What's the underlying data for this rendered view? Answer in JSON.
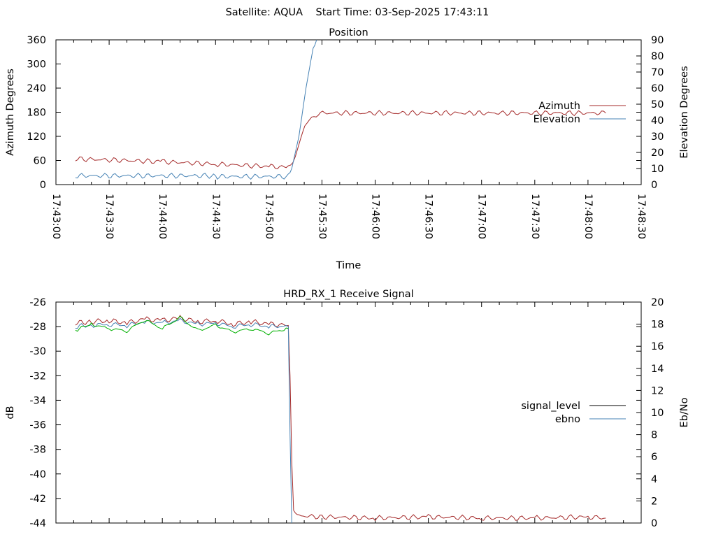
{
  "page_title": "Satellite: AQUA    Start Time: 03-Sep-2025 17:43:11",
  "chart_data": [
    {
      "type": "line",
      "title": "Position",
      "xlabel": "Time",
      "ylabel": "Azimuth Degrees",
      "y2label": "Elevation Degrees",
      "ylim": [
        0,
        360
      ],
      "y2lim": [
        0,
        90
      ],
      "yticks": [
        0,
        60,
        120,
        180,
        240,
        300,
        360
      ],
      "y2ticks": [
        0,
        10,
        20,
        30,
        40,
        50,
        60,
        70,
        80,
        90
      ],
      "xlim": [
        "17:43:00",
        "17:48:30"
      ],
      "xticks": [
        "17:43:00",
        "17:43:30",
        "17:44:00",
        "17:44:30",
        "17:45:00",
        "17:45:30",
        "17:46:00",
        "17:46:30",
        "17:47:00",
        "17:47:30",
        "17:48:00",
        "17:48:30"
      ],
      "legend_position": "right",
      "grid": false,
      "series": [
        {
          "name": "Azimuth",
          "axis": "y",
          "color": "#a52a2a",
          "points": [
            [
              "17:43:11",
              64
            ],
            [
              "17:44:00",
              57
            ],
            [
              "17:44:30",
              51
            ],
            [
              "17:45:00",
              45
            ],
            [
              "17:45:11",
              43
            ],
            [
              "17:45:15",
              70
            ],
            [
              "17:45:19",
              130
            ],
            [
              "17:45:23",
              160
            ],
            [
              "17:45:28",
              178
            ],
            [
              "17:48:10",
              178
            ]
          ]
        },
        {
          "name": "Elevation",
          "axis": "y2",
          "color": "#4682b4",
          "points": [
            [
              "17:43:11",
              5.5
            ],
            [
              "17:44:30",
              5.5
            ],
            [
              "17:44:31",
              5.0
            ],
            [
              "17:45:11",
              5.0
            ],
            [
              "17:45:13",
              10
            ],
            [
              "17:45:17",
              30
            ],
            [
              "17:45:21",
              60
            ],
            [
              "17:45:25",
              85
            ],
            [
              "17:45:27",
              90
            ]
          ]
        }
      ]
    },
    {
      "type": "line",
      "title": "HRD_RX_1 Receive Signal",
      "xlabel": "",
      "ylabel": "dB",
      "y2label": "Eb/No",
      "ylim": [
        -44,
        -26
      ],
      "y2lim": [
        0,
        20
      ],
      "yticks": [
        -26,
        -28,
        -30,
        -32,
        -34,
        -36,
        -38,
        -40,
        -42,
        -44
      ],
      "y2ticks": [
        0,
        2,
        4,
        6,
        8,
        10,
        12,
        14,
        16,
        18,
        20
      ],
      "xlim": [
        "17:43:00",
        "17:48:30"
      ],
      "legend_position": "right",
      "grid": false,
      "series": [
        {
          "name": "signal_level",
          "axis": "y",
          "color": "#a52a2a",
          "legend_color": "#000000",
          "points": [
            [
              "17:43:11",
              -27.7
            ],
            [
              "17:43:20",
              -27.6
            ],
            [
              "17:43:30",
              -27.5
            ],
            [
              "17:43:40",
              -27.7
            ],
            [
              "17:43:50",
              -27.4
            ],
            [
              "17:44:00",
              -27.5
            ],
            [
              "17:44:10",
              -27.3
            ],
            [
              "17:44:20",
              -27.6
            ],
            [
              "17:44:30",
              -27.5
            ],
            [
              "17:44:40",
              -27.8
            ],
            [
              "17:44:50",
              -27.6
            ],
            [
              "17:45:00",
              -27.8
            ],
            [
              "17:45:11",
              -27.9
            ],
            [
              "17:45:12",
              -32
            ],
            [
              "17:45:13",
              -39
            ],
            [
              "17:45:14",
              -43.0
            ],
            [
              "17:45:16",
              -43.4
            ],
            [
              "17:45:30",
              -43.5
            ],
            [
              "17:46:00",
              -43.6
            ],
            [
              "17:46:30",
              -43.5
            ],
            [
              "17:47:00",
              -43.6
            ],
            [
              "17:47:30",
              -43.6
            ],
            [
              "17:48:00",
              -43.5
            ],
            [
              "17:48:10",
              -43.6
            ]
          ]
        },
        {
          "name": "ebno",
          "axis": "y2",
          "color": "#4682b4",
          "points": [
            [
              "17:43:11",
              17.8
            ],
            [
              "17:43:20",
              17.9
            ],
            [
              "17:43:30",
              18.0
            ],
            [
              "17:43:40",
              17.9
            ],
            [
              "17:43:50",
              18.2
            ],
            [
              "17:44:00",
              18.1
            ],
            [
              "17:44:10",
              18.3
            ],
            [
              "17:44:20",
              18.0
            ],
            [
              "17:44:30",
              18.1
            ],
            [
              "17:44:40",
              17.8
            ],
            [
              "17:44:50",
              18.0
            ],
            [
              "17:45:00",
              17.8
            ],
            [
              "17:45:11",
              17.8
            ],
            [
              "17:45:12",
              8
            ],
            [
              "17:45:13",
              0
            ]
          ]
        },
        {
          "name": "",
          "axis": "y2",
          "color": "#00b000",
          "legend": false,
          "points": [
            [
              "17:43:11",
              17.5
            ],
            [
              "17:43:20",
              18.0
            ],
            [
              "17:43:30",
              17.6
            ],
            [
              "17:43:40",
              17.4
            ],
            [
              "17:43:50",
              18.4
            ],
            [
              "17:44:00",
              17.6
            ],
            [
              "17:44:10",
              18.6
            ],
            [
              "17:44:20",
              17.4
            ],
            [
              "17:44:30",
              17.9
            ],
            [
              "17:44:40",
              17.3
            ],
            [
              "17:44:50",
              17.6
            ],
            [
              "17:45:00",
              17.2
            ],
            [
              "17:45:11",
              17.6
            ]
          ]
        }
      ]
    }
  ]
}
